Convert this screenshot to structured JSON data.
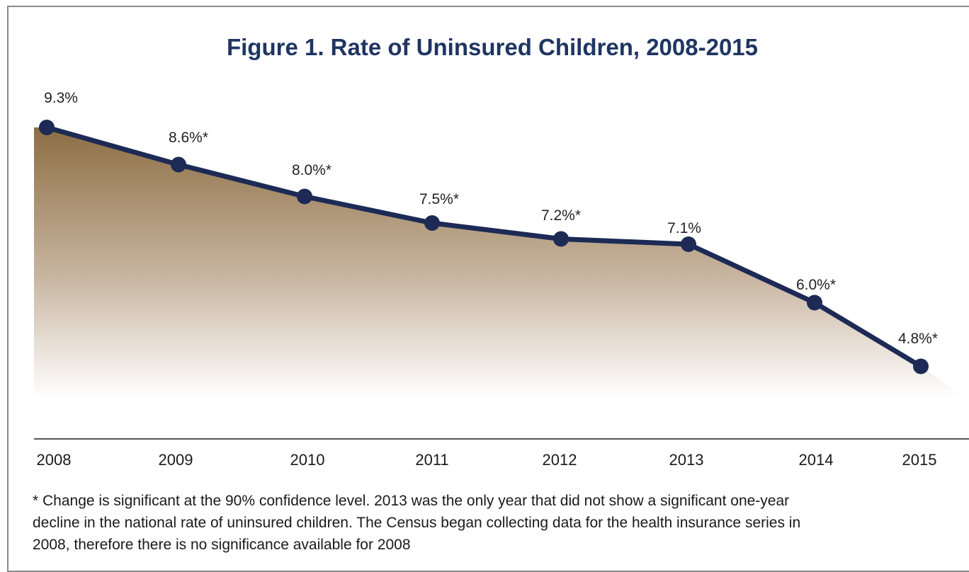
{
  "colors": {
    "line": "#1c2a55",
    "title": "#1f3562",
    "fill_top": "#8c6e43",
    "fill_bottom": "#ffffff",
    "axis": "#555555"
  },
  "chart_data": {
    "type": "area",
    "title": "Figure 1. Rate of Uninsured Children, 2008-2015",
    "xlabel": "",
    "ylabel": "",
    "categories": [
      "2008",
      "2009",
      "2010",
      "2011",
      "2012",
      "2013",
      "2014",
      "2015"
    ],
    "values": [
      9.3,
      8.6,
      8.0,
      7.5,
      7.2,
      7.1,
      6.0,
      4.8
    ],
    "data_labels": [
      "9.3%",
      "8.6%*",
      "8.0%*",
      "7.5%*",
      "7.2%*",
      "7.1%",
      "6.0%*",
      "4.8%*"
    ],
    "grid": false,
    "legend": "none"
  },
  "footnote": {
    "lines": [
      "* Change is significant at the 90% confidence level. 2013 was the only year that did not show a significant one-year",
      "decline in the national rate of uninsured children. The Census began collecting data for the health insurance series in",
      "2008, therefore there is no significance available for 2008"
    ]
  }
}
